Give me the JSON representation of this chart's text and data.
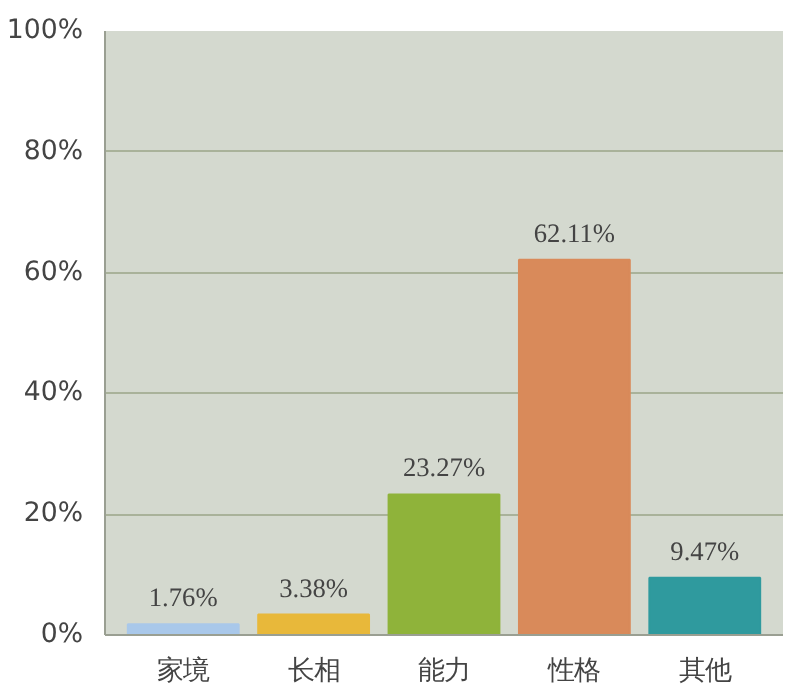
{
  "chart_data": {
    "type": "bar",
    "categories": [
      "家境",
      "长相",
      "能力",
      "性格",
      "其他"
    ],
    "values": [
      1.76,
      3.38,
      23.27,
      62.11,
      9.47
    ],
    "colors": [
      "#a9c8ea",
      "#e8b83a",
      "#8fb33a",
      "#d98a5a",
      "#2f9a9e"
    ],
    "value_labels": [
      "1.76%",
      "3.38%",
      "23.27%",
      "62.11%",
      "9.47%"
    ],
    "ylim": [
      0,
      100
    ],
    "yticks": [
      {
        "value": 0,
        "label": "0%"
      },
      {
        "value": 20,
        "label": "20%"
      },
      {
        "value": 40,
        "label": "40%"
      },
      {
        "value": 60,
        "label": "60%"
      },
      {
        "value": 80,
        "label": "80%"
      },
      {
        "value": 100,
        "label": "100%"
      }
    ],
    "grid": "y"
  }
}
